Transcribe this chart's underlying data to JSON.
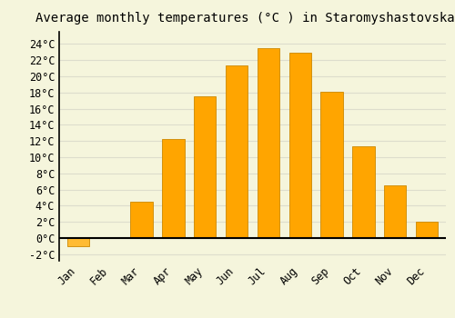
{
  "title": "Average monthly temperatures (°C ) in Staromyshastovskaya",
  "months": [
    "Jan",
    "Feb",
    "Mar",
    "Apr",
    "May",
    "Jun",
    "Jul",
    "Aug",
    "Sep",
    "Oct",
    "Nov",
    "Dec"
  ],
  "values": [
    -1.0,
    0,
    4.5,
    12.2,
    17.5,
    21.3,
    23.5,
    22.9,
    18.1,
    11.3,
    6.5,
    2.0
  ],
  "bar_color_positive": "#FFA500",
  "bar_color_negative": "#FFBB33",
  "bar_edge_color": "#CC8800",
  "background_color": "#F5F5DC",
  "grid_color": "#DDDDCC",
  "yticks": [
    -2,
    0,
    2,
    4,
    6,
    8,
    10,
    12,
    14,
    16,
    18,
    20,
    22,
    24
  ],
  "ylim": [
    -2.8,
    25.5
  ],
  "title_fontsize": 10,
  "tick_fontsize": 8.5,
  "font_family": "monospace",
  "bar_width": 0.7
}
